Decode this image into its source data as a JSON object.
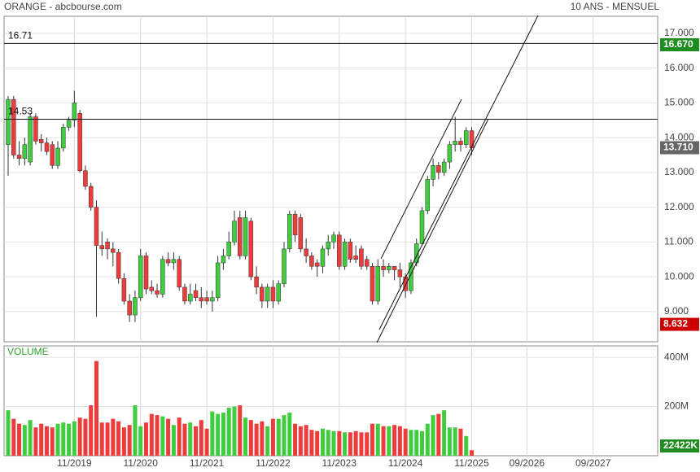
{
  "chart_data": [
    {
      "type": "candlestick",
      "title": "ORANGE - abcbourse.com",
      "subtitle": "10 ANS - MENSUEL",
      "categories": [
        null,
        null,
        null,
        null,
        null,
        null,
        null,
        null,
        null,
        null,
        null,
        null,
        "11/2019",
        null,
        null,
        null,
        null,
        null,
        null,
        null,
        null,
        null,
        null,
        null,
        "11/2020",
        null,
        null,
        null,
        null,
        null,
        null,
        null,
        null,
        null,
        null,
        null,
        "11/2021",
        null,
        null,
        null,
        null,
        null,
        null,
        null,
        null,
        null,
        null,
        null,
        "11/2022",
        null,
        null,
        null,
        null,
        null,
        null,
        null,
        null,
        null,
        null,
        null,
        "11/2023",
        null,
        null,
        null,
        null,
        null,
        null,
        null,
        null,
        null,
        null,
        null,
        "11/2024",
        null,
        null,
        null,
        null,
        null,
        null,
        null,
        null,
        null,
        null,
        null,
        "11/2025",
        null,
        null,
        null,
        null,
        null,
        null,
        null,
        null,
        null,
        "09/2026",
        null,
        null,
        null,
        null,
        null,
        null,
        null,
        null,
        null,
        null,
        null,
        "09/2027",
        null,
        null,
        null,
        null,
        null,
        null,
        null,
        null,
        null,
        null,
        null
      ],
      "open": [
        13.8,
        15.1,
        13.5,
        13.4,
        13.3,
        14.6,
        13.95,
        13.85,
        13.8,
        13.2,
        13.7,
        14.3,
        14.5,
        14.7,
        13.05,
        12.6,
        12.0,
        10.9,
        11.0,
        10.8,
        10.7,
        9.95,
        9.3,
        8.9,
        9.4,
        10.6,
        9.7,
        9.6,
        9.5,
        10.5,
        10.4,
        10.5,
        9.7,
        9.3,
        9.6,
        9.4,
        9.4,
        9.3,
        9.4,
        10.4,
        10.6,
        11.0,
        11.7,
        10.6,
        11.6,
        10.0,
        9.7,
        9.3,
        9.7,
        9.3,
        9.8,
        10.8,
        11.8,
        11.7,
        10.8,
        10.6,
        10.4,
        10.3,
        10.8,
        11.0,
        11.2,
        10.3,
        11.0,
        10.6,
        10.8,
        10.5,
        10.3,
        9.3,
        10.3,
        10.2,
        10.3,
        10.2,
        10.0,
        9.6,
        10.4,
        10.95,
        11.9,
        12.8,
        13.2,
        13.0,
        13.3,
        13.8,
        13.9,
        13.8,
        14.2,
        null,
        null,
        null,
        null,
        null,
        null,
        null,
        null,
        null,
        null,
        null,
        null,
        null,
        null,
        null,
        null,
        null,
        null,
        null,
        null,
        null,
        null,
        null,
        null,
        null,
        null,
        null,
        null,
        null,
        null,
        null,
        null,
        null
      ],
      "high": [
        15.2,
        15.2,
        13.9,
        14.0,
        14.7,
        14.7,
        14.1,
        14.0,
        13.9,
        13.9,
        14.4,
        14.6,
        15.35,
        14.8,
        13.2,
        12.7,
        12.2,
        11.3,
        11.1,
        11.0,
        10.8,
        10.1,
        9.5,
        9.6,
        10.8,
        10.7,
        9.9,
        9.8,
        10.6,
        10.7,
        10.7,
        10.6,
        9.8,
        9.8,
        9.8,
        9.7,
        9.6,
        9.6,
        10.6,
        10.8,
        11.3,
        11.9,
        11.9,
        11.9,
        11.7,
        10.3,
        9.8,
        9.8,
        9.9,
        9.9,
        11.0,
        11.9,
        11.9,
        11.8,
        11.1,
        10.7,
        10.5,
        10.9,
        11.2,
        11.3,
        11.3,
        11.1,
        11.1,
        10.9,
        10.9,
        10.6,
        10.4,
        10.5,
        10.5,
        10.4,
        10.3,
        10.4,
        10.1,
        10.5,
        11.1,
        12.0,
        12.9,
        13.4,
        13.3,
        13.4,
        13.9,
        14.6,
        14.0,
        14.3,
        14.3,
        null,
        null,
        null,
        null,
        null,
        null,
        null,
        null,
        null,
        null,
        null,
        null,
        null,
        null,
        null,
        null,
        null,
        null,
        null,
        null,
        null,
        null,
        null,
        null,
        null,
        null,
        null,
        null,
        null,
        null,
        null,
        null,
        null
      ],
      "low": [
        12.9,
        13.4,
        13.2,
        13.2,
        13.2,
        13.8,
        13.6,
        13.5,
        13.1,
        13.1,
        13.6,
        14.2,
        14.3,
        13.0,
        12.5,
        11.9,
        8.85,
        10.6,
        10.5,
        10.3,
        9.8,
        9.2,
        8.7,
        8.7,
        9.3,
        9.5,
        9.5,
        9.4,
        9.4,
        10.3,
        10.2,
        9.6,
        9.2,
        9.2,
        9.3,
        9.1,
        9.2,
        9.0,
        9.3,
        10.2,
        10.5,
        10.9,
        10.5,
        10.5,
        9.9,
        9.5,
        9.1,
        9.1,
        9.1,
        9.2,
        9.7,
        10.7,
        11.0,
        10.7,
        10.4,
        10.2,
        10.0,
        10.1,
        10.6,
        10.8,
        10.2,
        10.2,
        10.4,
        10.4,
        10.2,
        10.2,
        9.2,
        9.2,
        10.0,
        10.1,
        9.9,
        9.7,
        9.4,
        9.5,
        10.3,
        10.9,
        11.8,
        12.6,
        12.8,
        12.9,
        13.1,
        13.6,
        13.6,
        13.7,
        13.5,
        null,
        null,
        null,
        null,
        null,
        null,
        null,
        null,
        null,
        null,
        null,
        null,
        null,
        null,
        null,
        null,
        null,
        null,
        null,
        null,
        null,
        null,
        null,
        null,
        null,
        null,
        null,
        null,
        null,
        null,
        null,
        null,
        null
      ],
      "close": [
        15.1,
        13.5,
        13.4,
        13.8,
        14.6,
        13.9,
        13.85,
        13.6,
        13.2,
        13.7,
        14.3,
        14.5,
        15.0,
        13.05,
        12.6,
        12.0,
        10.9,
        10.8,
        10.8,
        10.7,
        9.95,
        9.3,
        8.9,
        9.4,
        10.6,
        9.65,
        9.6,
        9.5,
        10.5,
        10.4,
        10.5,
        9.7,
        9.3,
        9.5,
        9.4,
        9.3,
        9.3,
        9.4,
        10.4,
        10.6,
        11.0,
        11.6,
        10.6,
        11.7,
        10.0,
        9.7,
        9.3,
        9.7,
        9.3,
        9.8,
        10.8,
        11.8,
        11.2,
        10.8,
        10.6,
        10.3,
        10.3,
        10.8,
        11.0,
        11.2,
        10.3,
        11.0,
        10.5,
        10.5,
        10.3,
        10.3,
        9.3,
        10.3,
        10.2,
        10.3,
        10.2,
        10.0,
        9.6,
        10.4,
        10.95,
        11.9,
        12.8,
        13.2,
        13.0,
        13.3,
        13.8,
        13.9,
        13.8,
        14.2,
        13.71,
        null,
        null,
        null,
        null,
        null,
        null,
        null,
        null,
        null,
        null,
        null,
        null,
        null,
        null,
        null,
        null,
        null,
        null,
        null,
        null,
        null,
        null,
        null,
        null,
        null,
        null,
        null,
        null,
        null,
        null,
        null,
        null,
        null
      ],
      "up_color": "#3fcc3f",
      "down_color": "#ee3b3b",
      "ylim": [
        8.13,
        17.49
      ],
      "yticks": [
        {
          "value": 9,
          "label": "9.000"
        },
        {
          "value": 10,
          "label": "10.000"
        },
        {
          "value": 11,
          "label": "11.000"
        },
        {
          "value": 12,
          "label": "12.000"
        },
        {
          "value": 13,
          "label": "13.000"
        },
        {
          "value": 14,
          "label": "14.000"
        },
        {
          "value": 15,
          "label": "15.000"
        },
        {
          "value": 16,
          "label": "16.000"
        },
        {
          "value": 17,
          "label": "17.000"
        }
      ],
      "grid": true,
      "hlines": [
        {
          "value": 16.71,
          "label": "16.71"
        },
        {
          "value": 14.53,
          "label": "14.53"
        }
      ],
      "price_tags": [
        {
          "value": 16.67,
          "label": "16.670",
          "color": "#1e8c1e"
        },
        {
          "value": 13.71,
          "label": "13.710",
          "color": "#666666"
        },
        {
          "value": 8.632,
          "label": "8.632",
          "color": "#cc0000"
        }
      ]
    },
    {
      "type": "bar",
      "title": "VOLUME",
      "values": [
        185,
        150,
        130,
        125,
        145,
        115,
        130,
        120,
        115,
        130,
        135,
        130,
        140,
        155,
        150,
        205,
        385,
        135,
        135,
        150,
        140,
        115,
        125,
        205,
        120,
        135,
        170,
        165,
        160,
        150,
        125,
        155,
        130,
        135,
        120,
        145,
        110,
        180,
        170,
        175,
        195,
        200,
        205,
        155,
        145,
        130,
        140,
        120,
        150,
        150,
        165,
        175,
        130,
        120,
        125,
        105,
        100,
        110,
        105,
        100,
        100,
        95,
        95,
        100,
        95,
        95,
        130,
        130,
        120,
        120,
        125,
        120,
        110,
        105,
        105,
        100,
        130,
        165,
        170,
        185,
        115,
        115,
        110,
        80,
        22.422,
        null,
        null,
        null,
        null,
        null,
        null,
        null,
        null,
        null,
        null,
        null,
        null,
        null,
        null,
        null,
        null,
        null,
        null,
        null,
        null,
        null,
        null,
        null,
        null,
        null,
        null,
        null,
        null,
        null,
        null,
        null,
        null,
        null
      ],
      "ylim": [
        0,
        446.7
      ],
      "yticks": [
        {
          "value": 200,
          "label": "200M"
        },
        {
          "value": 400,
          "label": "400M"
        }
      ],
      "grid": true,
      "value_tag": {
        "value": 22.422,
        "label": "22422K",
        "color": "#1e8c1e"
      }
    }
  ]
}
